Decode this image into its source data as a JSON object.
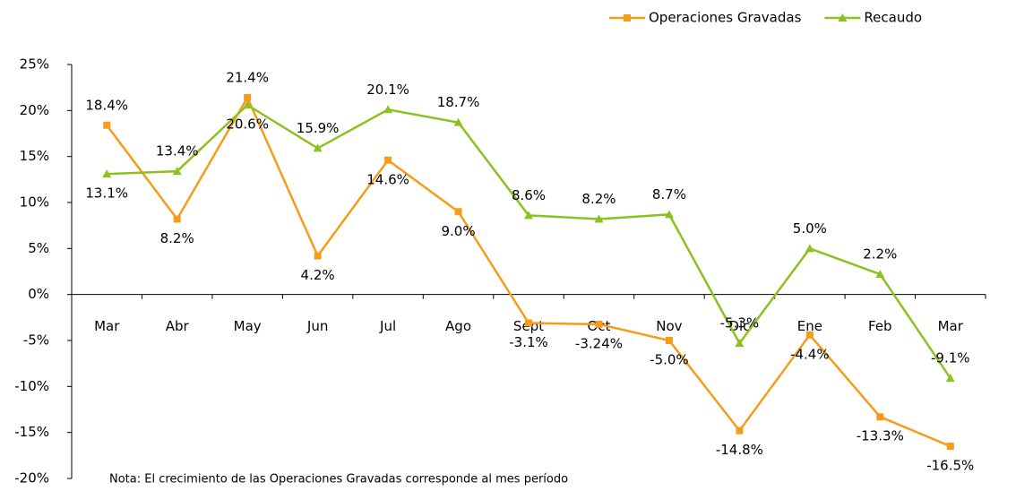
{
  "chart_data": {
    "type": "line",
    "categories": [
      "Mar",
      "Abr",
      "May",
      "Jun",
      "Jul",
      "Ago",
      "Sept",
      "Oct",
      "Nov",
      "Dic",
      "Ene",
      "Feb",
      "Mar"
    ],
    "series": [
      {
        "name": "Operaciones Gravadas",
        "color": "#f59c1a",
        "marker": "square",
        "values": [
          18.4,
          8.2,
          21.4,
          4.2,
          14.6,
          9.0,
          -3.1,
          -3.24,
          -5.0,
          -14.8,
          -4.4,
          -13.3,
          -16.5
        ],
        "value_labels": [
          "18.4%",
          "8.2%",
          "21.4%",
          "4.2%",
          "14.6%",
          "9.0%",
          "-3.1%",
          "-3.24%",
          "-5.0%",
          "-14.8%",
          "-4.4%",
          "-13.3%",
          "-16.5%"
        ]
      },
      {
        "name": "Recaudo",
        "color": "#8cc21f",
        "marker": "triangle",
        "values": [
          13.1,
          13.4,
          20.6,
          15.9,
          20.1,
          18.7,
          8.6,
          8.2,
          8.7,
          -5.3,
          5.0,
          2.2,
          -9.1
        ],
        "value_labels": [
          "13.1%",
          "13.4%",
          "20.6%",
          "15.9%",
          "20.1%",
          "18.7%",
          "8.6%",
          "8.2%",
          "8.7%",
          "-5.3%",
          "5.0%",
          "2.2%",
          "-9.1%"
        ]
      }
    ],
    "ylim": [
      -20,
      25
    ],
    "yticks": [
      {
        "value": -20,
        "label": "-20%"
      },
      {
        "value": -15,
        "label": "-15%"
      },
      {
        "value": -10,
        "label": "-10%"
      },
      {
        "value": -5,
        "label": "-5%"
      },
      {
        "value": 0,
        "label": "0%"
      },
      {
        "value": 5,
        "label": "5%"
      },
      {
        "value": 10,
        "label": "10%"
      },
      {
        "value": 15,
        "label": "15%"
      },
      {
        "value": 20,
        "label": "20%"
      },
      {
        "value": 25,
        "label": "25%"
      }
    ],
    "grid": false,
    "legend": "top-right",
    "note": "Nota: El crecimiento de las Operaciones Gravadas corresponde al mes período"
  }
}
